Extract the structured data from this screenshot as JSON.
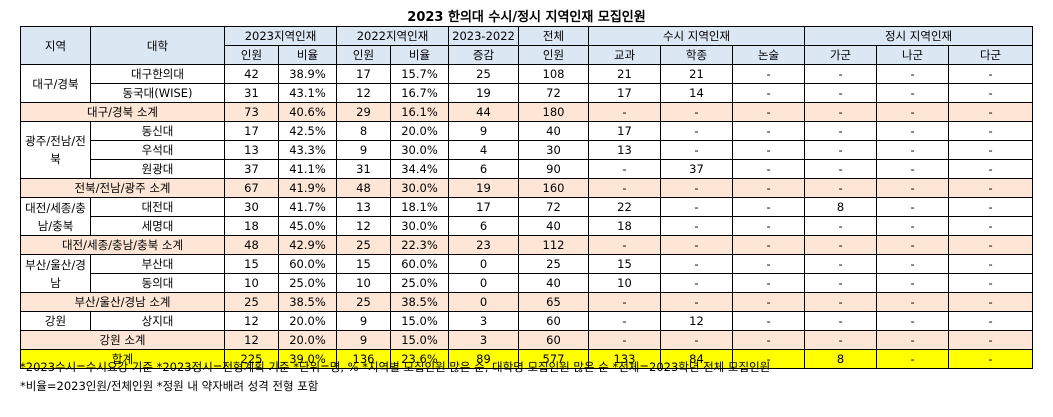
{
  "title": "2023 한의대 수시/정시 지역인재 모집인원",
  "headers": {
    "region": "지역",
    "univ": "대학",
    "g2023": "2023지역인재",
    "g2022": "2022지역인재",
    "diff": "2023-2022",
    "total": "전체",
    "susi": "수시 지역인재",
    "jungsi": "정시 지역인재",
    "count": "인원",
    "ratio": "비율",
    "change": "증감",
    "total_count": "인원",
    "gyogwa": "교과",
    "hakjong": "학종",
    "nonsul": "논술",
    "ga": "가군",
    "na": "나군",
    "da": "다군"
  },
  "regions": {
    "daegu": "대구/경북",
    "gwangju": "광주/전남/전북",
    "daejeon": "대전/세종/충남/충북",
    "busan": "부산/울산/경남",
    "gangwon": "강원"
  },
  "rows": [
    {
      "univ": "대구한의대",
      "c23": "42",
      "r23": "38.9%",
      "c22": "17",
      "r22": "15.7%",
      "diff": "25",
      "total": "108",
      "gyogwa": "21",
      "hakjong": "21",
      "nonsul": "-",
      "ga": "-",
      "na": "-",
      "da": "-"
    },
    {
      "univ": "동국대(WISE)",
      "c23": "31",
      "r23": "43.1%",
      "c22": "12",
      "r22": "16.7%",
      "diff": "19",
      "total": "72",
      "gyogwa": "17",
      "hakjong": "14",
      "nonsul": "-",
      "ga": "-",
      "na": "-",
      "da": "-"
    },
    {
      "univ": "대구/경북 소계",
      "c23": "73",
      "r23": "40.6%",
      "c22": "29",
      "r22": "16.1%",
      "diff": "44",
      "total": "180",
      "gyogwa": "-",
      "hakjong": "-",
      "nonsul": "-",
      "ga": "-",
      "na": "-",
      "da": "-"
    },
    {
      "univ": "동신대",
      "c23": "17",
      "r23": "42.5%",
      "c22": "8",
      "r22": "20.0%",
      "diff": "9",
      "total": "40",
      "gyogwa": "17",
      "hakjong": "-",
      "nonsul": "-",
      "ga": "-",
      "na": "-",
      "da": "-"
    },
    {
      "univ": "우석대",
      "c23": "13",
      "r23": "43.3%",
      "c22": "9",
      "r22": "30.0%",
      "diff": "4",
      "total": "30",
      "gyogwa": "13",
      "hakjong": "-",
      "nonsul": "-",
      "ga": "-",
      "na": "-",
      "da": "-"
    },
    {
      "univ": "원광대",
      "c23": "37",
      "r23": "41.1%",
      "c22": "31",
      "r22": "34.4%",
      "diff": "6",
      "total": "90",
      "gyogwa": "-",
      "hakjong": "37",
      "nonsul": "-",
      "ga": "-",
      "na": "-",
      "da": "-"
    },
    {
      "univ": "전북/전남/광주 소계",
      "c23": "67",
      "r23": "41.9%",
      "c22": "48",
      "r22": "30.0%",
      "diff": "19",
      "total": "160",
      "gyogwa": "-",
      "hakjong": "-",
      "nonsul": "-",
      "ga": "-",
      "na": "-",
      "da": "-"
    },
    {
      "univ": "대전대",
      "c23": "30",
      "r23": "41.7%",
      "c22": "13",
      "r22": "18.1%",
      "diff": "17",
      "total": "72",
      "gyogwa": "22",
      "hakjong": "-",
      "nonsul": "-",
      "ga": "8",
      "na": "-",
      "da": "-"
    },
    {
      "univ": "세명대",
      "c23": "18",
      "r23": "45.0%",
      "c22": "12",
      "r22": "30.0%",
      "diff": "6",
      "total": "40",
      "gyogwa": "18",
      "hakjong": "-",
      "nonsul": "-",
      "ga": "-",
      "na": "-",
      "da": "-"
    },
    {
      "univ": "대전/세종/충남/충북 소계",
      "c23": "48",
      "r23": "42.9%",
      "c22": "25",
      "r22": "22.3%",
      "diff": "23",
      "total": "112",
      "gyogwa": "-",
      "hakjong": "-",
      "nonsul": "-",
      "ga": "-",
      "na": "-",
      "da": "-"
    },
    {
      "univ": "부산대",
      "c23": "15",
      "r23": "60.0%",
      "c22": "15",
      "r22": "60.0%",
      "diff": "0",
      "total": "25",
      "gyogwa": "15",
      "hakjong": "-",
      "nonsul": "-",
      "ga": "-",
      "na": "-",
      "da": "-"
    },
    {
      "univ": "동의대",
      "c23": "10",
      "r23": "25.0%",
      "c22": "10",
      "r22": "25.0%",
      "diff": "0",
      "total": "40",
      "gyogwa": "10",
      "hakjong": "-",
      "nonsul": "-",
      "ga": "-",
      "na": "-",
      "da": "-"
    },
    {
      "univ": "부산/울산/경남 소계",
      "c23": "25",
      "r23": "38.5%",
      "c22": "25",
      "r22": "38.5%",
      "diff": "0",
      "total": "65",
      "gyogwa": "-",
      "hakjong": "-",
      "nonsul": "-",
      "ga": "-",
      "na": "-",
      "da": "-"
    },
    {
      "univ": "상지대",
      "c23": "12",
      "r23": "20.0%",
      "c22": "9",
      "r22": "15.0%",
      "diff": "3",
      "total": "60",
      "gyogwa": "-",
      "hakjong": "12",
      "nonsul": "-",
      "ga": "-",
      "na": "-",
      "da": "-"
    },
    {
      "univ": "강원 소계",
      "c23": "12",
      "r23": "20.0%",
      "c22": "9",
      "r22": "15.0%",
      "diff": "3",
      "total": "60",
      "gyogwa": "-",
      "hakjong": "-",
      "nonsul": "-",
      "ga": "-",
      "na": "-",
      "da": "-"
    },
    {
      "univ": "합계",
      "c23": "225",
      "r23": "39.0%",
      "c22": "136",
      "r22": "23.6%",
      "diff": "89",
      "total": "577",
      "gyogwa": "133",
      "hakjong": "84",
      "nonsul": "-",
      "ga": "8",
      "na": "-",
      "da": "-"
    }
  ],
  "notes": [
    "*2023수시=수시요강 기준 *2023정시=전형계획 기준 *단위=명, % *지역별 모집인원 많은 순, 대학명 모집인원 많은 순 *전체=2023학년 전체 모집인원",
    "*비율=2023인원/전체인원 *정원 내 약자배려 성격 전형 포함"
  ],
  "colors": {
    "header": "#dbe7f3",
    "subtotal": "#fde6d6",
    "total": "#ffff00"
  }
}
